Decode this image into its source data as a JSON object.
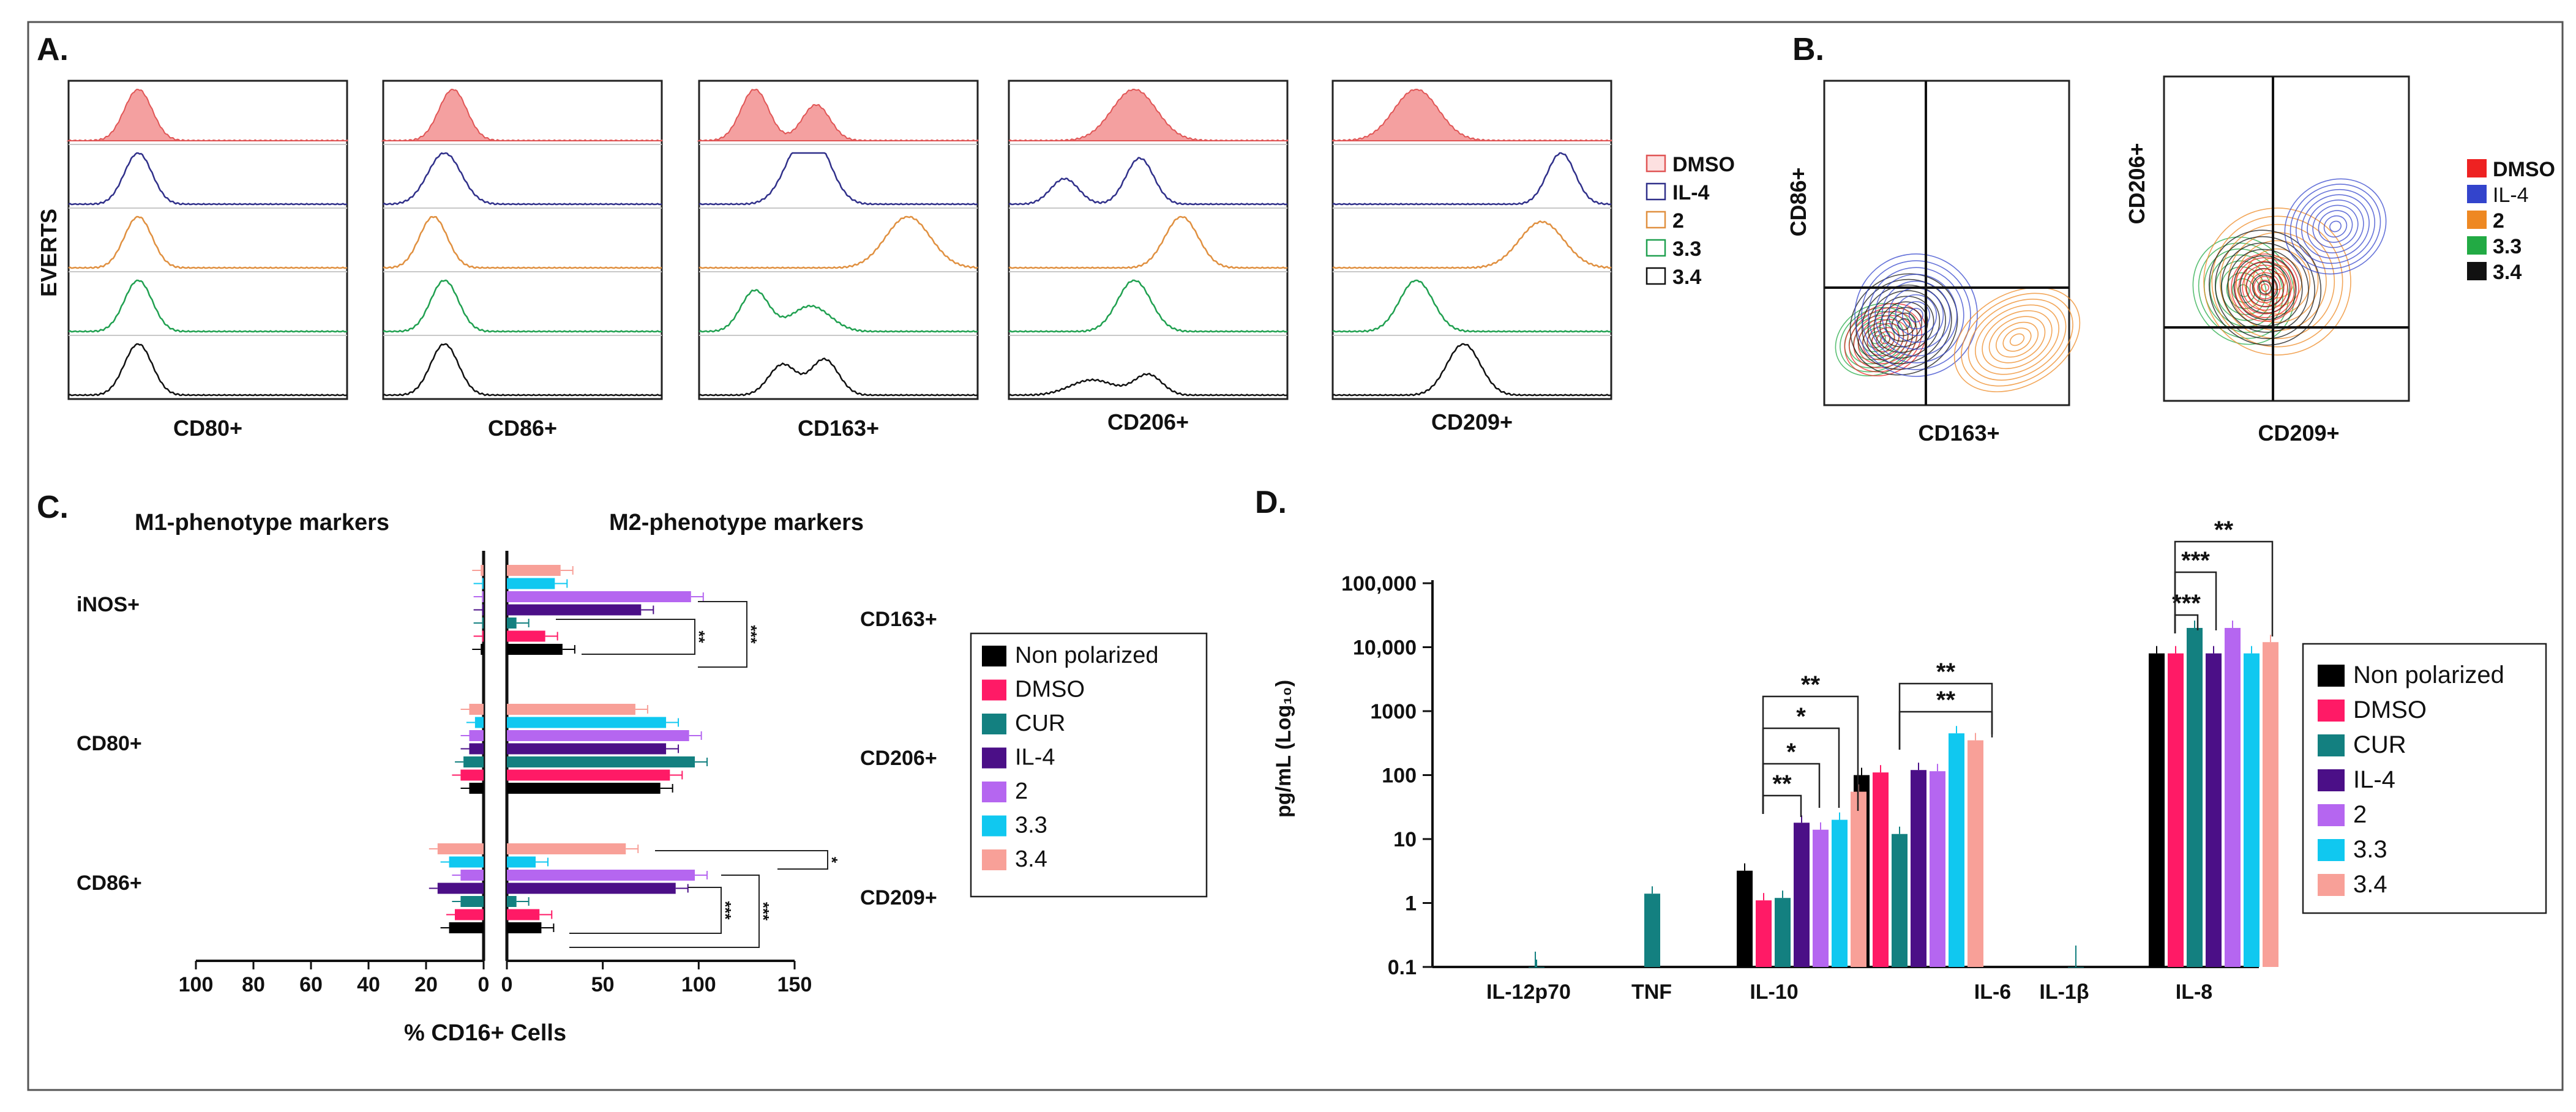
{
  "panels": {
    "A": {
      "label": "A.",
      "yaxis": "EVERTS",
      "markers": [
        "CD80+",
        "CD86+",
        "CD163+",
        "CD206+",
        "CD209+"
      ],
      "legend": [
        {
          "name": "DMSO",
          "color": "#e05555"
        },
        {
          "name": "IL-4",
          "color": "#30308a"
        },
        {
          "name": "2",
          "color": "#e09040"
        },
        {
          "name": "3.3",
          "color": "#20a050"
        },
        {
          "name": "3.4",
          "color": "#111111"
        }
      ]
    },
    "B": {
      "label": "B.",
      "plots": [
        {
          "ylabel": "CD86+",
          "xlabel": "CD163+"
        },
        {
          "ylabel": "CD206+",
          "xlabel": "CD209+"
        }
      ],
      "legend": [
        {
          "name": "DMSO",
          "color": "#ee2222"
        },
        {
          "name": "IL-4",
          "color": "#3344cc"
        },
        {
          "name": "2",
          "color": "#ee8822"
        },
        {
          "name": "3.3",
          "color": "#22aa44"
        },
        {
          "name": "3.4",
          "color": "#111111"
        }
      ]
    },
    "C": {
      "label": "C.",
      "left_title": "M1-phenotype markers",
      "right_title": "M2-phenotype markers"
    },
    "D": {
      "label": "D."
    }
  },
  "chart_data": [
    {
      "type": "bar",
      "title": "",
      "xlabel": "% CD16+ Cells",
      "left_title": "M1-phenotype markers",
      "right_title": "M2-phenotype markers",
      "left_categories": [
        "iNOS+",
        "CD80+",
        "CD86+"
      ],
      "right_categories": [
        "CD163+",
        "CD206+",
        "CD209+"
      ],
      "left_xlim": [
        100,
        0
      ],
      "right_xlim": [
        0,
        150
      ],
      "left_ticks": [
        100,
        80,
        60,
        40,
        20,
        0
      ],
      "right_ticks": [
        0,
        50,
        100,
        150
      ],
      "significance": [
        "**",
        "***",
        "***",
        "***",
        "*"
      ],
      "series": [
        {
          "name": "Non polarized",
          "color": "#000000",
          "left": [
            1,
            5,
            12
          ],
          "right": [
            29,
            80,
            18
          ]
        },
        {
          "name": "DMSO",
          "color": "#ff1a66",
          "left": [
            0.5,
            8,
            10
          ],
          "right": [
            20,
            85,
            17
          ]
        },
        {
          "name": "CUR",
          "color": "#138080",
          "left": [
            0.5,
            7,
            8
          ],
          "right": [
            5,
            98,
            5
          ]
        },
        {
          "name": "IL-4",
          "color": "#4b0f87",
          "left": [
            0.5,
            5,
            16
          ],
          "right": [
            70,
            83,
            88
          ]
        },
        {
          "name": "2",
          "color": "#b566f0",
          "left": [
            0.5,
            5,
            8
          ],
          "right": [
            96,
            95,
            98
          ]
        },
        {
          "name": "3.3",
          "color": "#10c8f0",
          "left": [
            0.5,
            3,
            12
          ],
          "right": [
            25,
            83,
            15
          ]
        },
        {
          "name": "3.4",
          "color": "#f8a098",
          "left": [
            1,
            5,
            16
          ],
          "right": [
            28,
            67,
            62
          ]
        }
      ]
    },
    {
      "type": "bar",
      "title": "",
      "xlabel": "",
      "ylabel": "pg/mL (Log₁₀)",
      "yscale": "log",
      "ylim": [
        0.1,
        100000
      ],
      "yticks": [
        "0.1",
        "1",
        "10",
        "100",
        "1000",
        "10,000",
        "100,000"
      ],
      "categories": [
        "IL-12p70",
        "TNF",
        "IL-10",
        "IL-6",
        "IL-1β",
        "IL-8"
      ],
      "significance": [
        "**",
        "*",
        "*",
        "**",
        "**",
        "**",
        "***",
        "***",
        "**"
      ],
      "series": [
        {
          "name": "Non polarized",
          "color": "#000000",
          "values": [
            null,
            null,
            3.2,
            100,
            null,
            8000
          ]
        },
        {
          "name": "DMSO",
          "color": "#ff1a66",
          "values": [
            null,
            null,
            1.1,
            110,
            null,
            8000
          ]
        },
        {
          "name": "CUR",
          "color": "#138080",
          "values": [
            0.1,
            1.4,
            1.2,
            12,
            0.1,
            20000
          ]
        },
        {
          "name": "IL-4",
          "color": "#4b0f87",
          "values": [
            null,
            null,
            18,
            120,
            null,
            8000
          ]
        },
        {
          "name": "2",
          "color": "#b566f0",
          "values": [
            null,
            null,
            14,
            115,
            null,
            20000
          ]
        },
        {
          "name": "3.3",
          "color": "#10c8f0",
          "values": [
            null,
            null,
            20,
            450,
            null,
            8000
          ]
        },
        {
          "name": "3.4",
          "color": "#f8a098",
          "values": [
            null,
            null,
            55,
            350,
            null,
            12000
          ]
        }
      ]
    }
  ]
}
